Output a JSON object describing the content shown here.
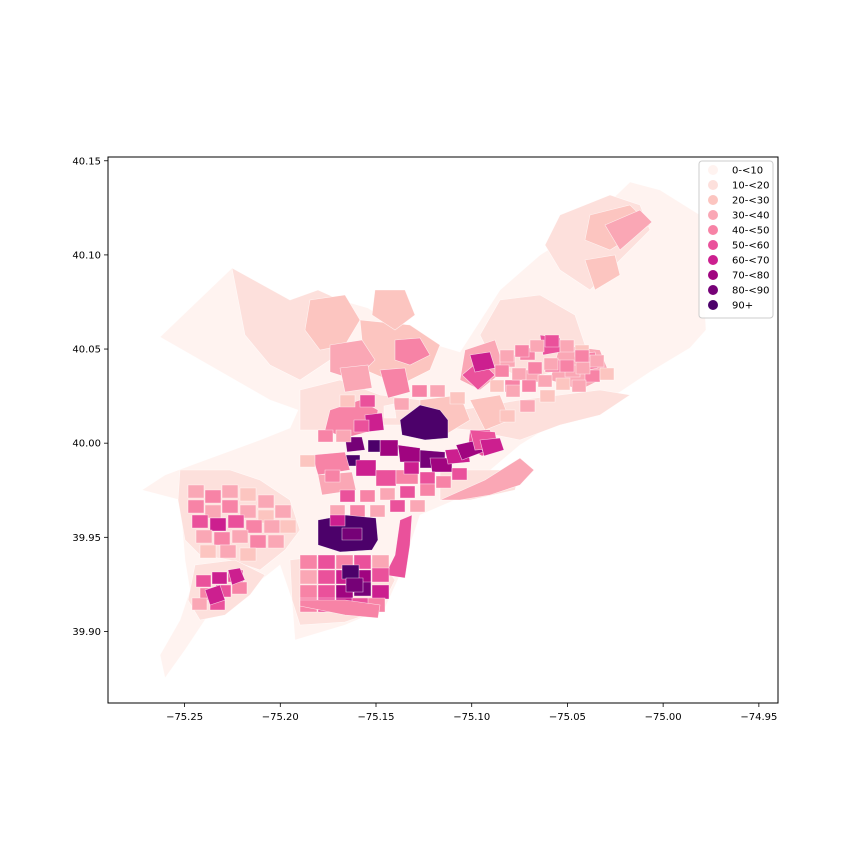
{
  "chart_data": {
    "type": "choropleth",
    "title": "",
    "xlabel": "",
    "ylabel": "",
    "xlim": [
      -75.29,
      -74.94
    ],
    "ylim": [
      39.862,
      40.152
    ],
    "x_ticks": [
      -75.25,
      -75.2,
      -75.15,
      -75.1,
      -75.05,
      -75.0,
      -74.95
    ],
    "x_tick_labels": [
      "−75.25",
      "−75.20",
      "−75.15",
      "−75.10",
      "−75.05",
      "−75.00",
      "−74.95"
    ],
    "y_ticks": [
      39.9,
      39.95,
      40.0,
      40.05,
      40.1,
      40.15
    ],
    "y_tick_labels": [
      "39.90",
      "39.95",
      "40.00",
      "40.05",
      "40.10",
      "40.15"
    ],
    "grid": false,
    "legend_position": "top-right",
    "legend": [
      {
        "label": "0-<10",
        "color": "#fff3f0"
      },
      {
        "label": "10-<20",
        "color": "#fde0dc"
      },
      {
        "label": "20-<30",
        "color": "#fcc5c0"
      },
      {
        "label": "30-<40",
        "color": "#faa7b5"
      },
      {
        "label": "40-<50",
        "color": "#f783a6"
      },
      {
        "label": "50-<60",
        "color": "#ea519b"
      },
      {
        "label": "60-<70",
        "color": "#cc1f8f"
      },
      {
        "label": "70-<80",
        "color": "#a00480"
      },
      {
        "label": "80-<90",
        "color": "#760177"
      },
      {
        "label": "90+",
        "color": "#4c016a"
      }
    ]
  }
}
